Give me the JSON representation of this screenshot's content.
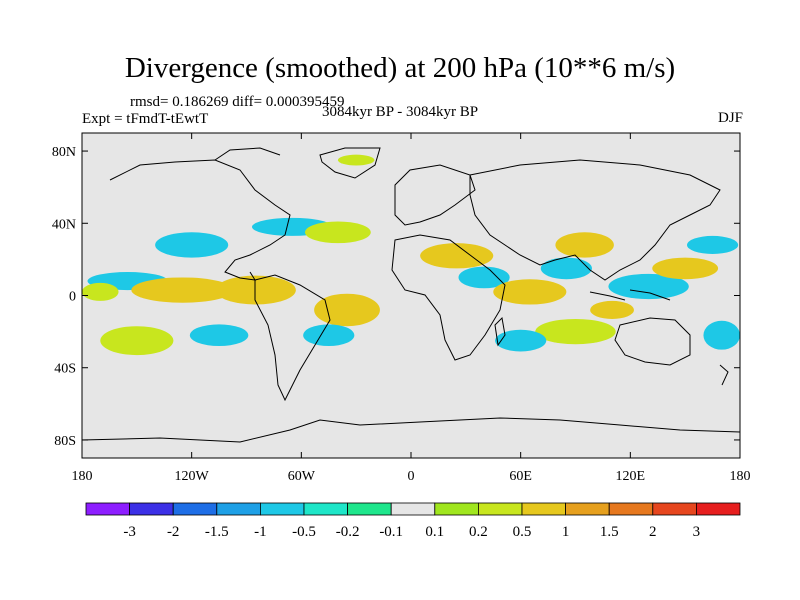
{
  "title": "Divergence (smoothed) at 200 hPa (10**6 m/s)",
  "stats": "rmsd= 0.186269 diff= 0.000395459",
  "experiment": "Expt = tFmdT-tEwtT",
  "period": "3084kyr BP - 3084kyr BP",
  "season": "DJF",
  "map": {
    "projection": "cylindrical-equidistant",
    "lon_range": [
      -180,
      180
    ],
    "lat_range": [
      -90,
      90
    ],
    "background_color": "#e6e6e6",
    "y_ticks": [
      {
        "label": "80N",
        "lat": 80
      },
      {
        "label": "40N",
        "lat": 40
      },
      {
        "label": "0",
        "lat": 0
      },
      {
        "label": "40S",
        "lat": -40
      },
      {
        "label": "80S",
        "lat": -80
      }
    ],
    "x_ticks": [
      {
        "label": "180",
        "lon": -180
      },
      {
        "label": "120W",
        "lon": -120
      },
      {
        "label": "60W",
        "lon": -60
      },
      {
        "label": "0",
        "lon": 0
      },
      {
        "label": "60E",
        "lon": 60
      },
      {
        "label": "120E",
        "lon": 120
      },
      {
        "label": "180",
        "lon": 180
      }
    ]
  },
  "colorbar": {
    "colors": [
      "#8d1eff",
      "#3c30e6",
      "#1e6ee6",
      "#1ea0e6",
      "#1ec8e6",
      "#1ee6c8",
      "#1ee68c",
      "#e6e6e6",
      "#a0e61e",
      "#c8e61e",
      "#e6c81e",
      "#e6a01e",
      "#e6781e",
      "#e6461e",
      "#e61e1e"
    ],
    "labels": [
      "-3",
      "-2",
      "-1.5",
      "-1",
      "-0.5",
      "-0.2",
      "-0.1",
      "0.1",
      "0.2",
      "0.5",
      "1",
      "1.5",
      "2",
      "3"
    ]
  },
  "contours": [
    {
      "color": "#1ec8e6",
      "lon": -155,
      "lat": 8,
      "rx": 22,
      "ry": 5
    },
    {
      "color": "#c8e61e",
      "lon": -170,
      "lat": 2,
      "rx": 10,
      "ry": 5
    },
    {
      "color": "#e6c81e",
      "lon": -125,
      "lat": 3,
      "rx": 28,
      "ry": 7
    },
    {
      "color": "#e6c81e",
      "lon": -85,
      "lat": 3,
      "rx": 22,
      "ry": 8
    },
    {
      "color": "#1ec8e6",
      "lon": -120,
      "lat": 28,
      "rx": 20,
      "ry": 7
    },
    {
      "color": "#1ec8e6",
      "lon": -65,
      "lat": 38,
      "rx": 22,
      "ry": 5
    },
    {
      "color": "#c8e61e",
      "lon": -40,
      "lat": 35,
      "rx": 18,
      "ry": 6
    },
    {
      "color": "#e6c81e",
      "lon": -35,
      "lat": -8,
      "rx": 18,
      "ry": 9
    },
    {
      "color": "#1ec8e6",
      "lon": -45,
      "lat": -22,
      "rx": 14,
      "ry": 6
    },
    {
      "color": "#c8e61e",
      "lon": -150,
      "lat": -25,
      "rx": 20,
      "ry": 8
    },
    {
      "color": "#1ec8e6",
      "lon": -105,
      "lat": -22,
      "rx": 16,
      "ry": 6
    },
    {
      "color": "#c8e61e",
      "lon": -30,
      "lat": 75,
      "rx": 10,
      "ry": 3
    },
    {
      "color": "#e6c81e",
      "lon": 25,
      "lat": 22,
      "rx": 20,
      "ry": 7
    },
    {
      "color": "#1ec8e6",
      "lon": 40,
      "lat": 10,
      "rx": 14,
      "ry": 6
    },
    {
      "color": "#e6c81e",
      "lon": 65,
      "lat": 2,
      "rx": 20,
      "ry": 7
    },
    {
      "color": "#1ec8e6",
      "lon": 85,
      "lat": 15,
      "rx": 14,
      "ry": 6
    },
    {
      "color": "#e6c81e",
      "lon": 95,
      "lat": 28,
      "rx": 16,
      "ry": 7
    },
    {
      "color": "#1ec8e6",
      "lon": 130,
      "lat": 5,
      "rx": 22,
      "ry": 7
    },
    {
      "color": "#e6c81e",
      "lon": 150,
      "lat": 15,
      "rx": 18,
      "ry": 6
    },
    {
      "color": "#1ec8e6",
      "lon": 165,
      "lat": 28,
      "rx": 14,
      "ry": 5
    },
    {
      "color": "#c8e61e",
      "lon": 90,
      "lat": -20,
      "rx": 22,
      "ry": 7
    },
    {
      "color": "#1ec8e6",
      "lon": 60,
      "lat": -25,
      "rx": 14,
      "ry": 6
    },
    {
      "color": "#e6c81e",
      "lon": 110,
      "lat": -8,
      "rx": 12,
      "ry": 5
    },
    {
      "color": "#1ec8e6",
      "lon": 170,
      "lat": -22,
      "rx": 10,
      "ry": 8
    }
  ]
}
